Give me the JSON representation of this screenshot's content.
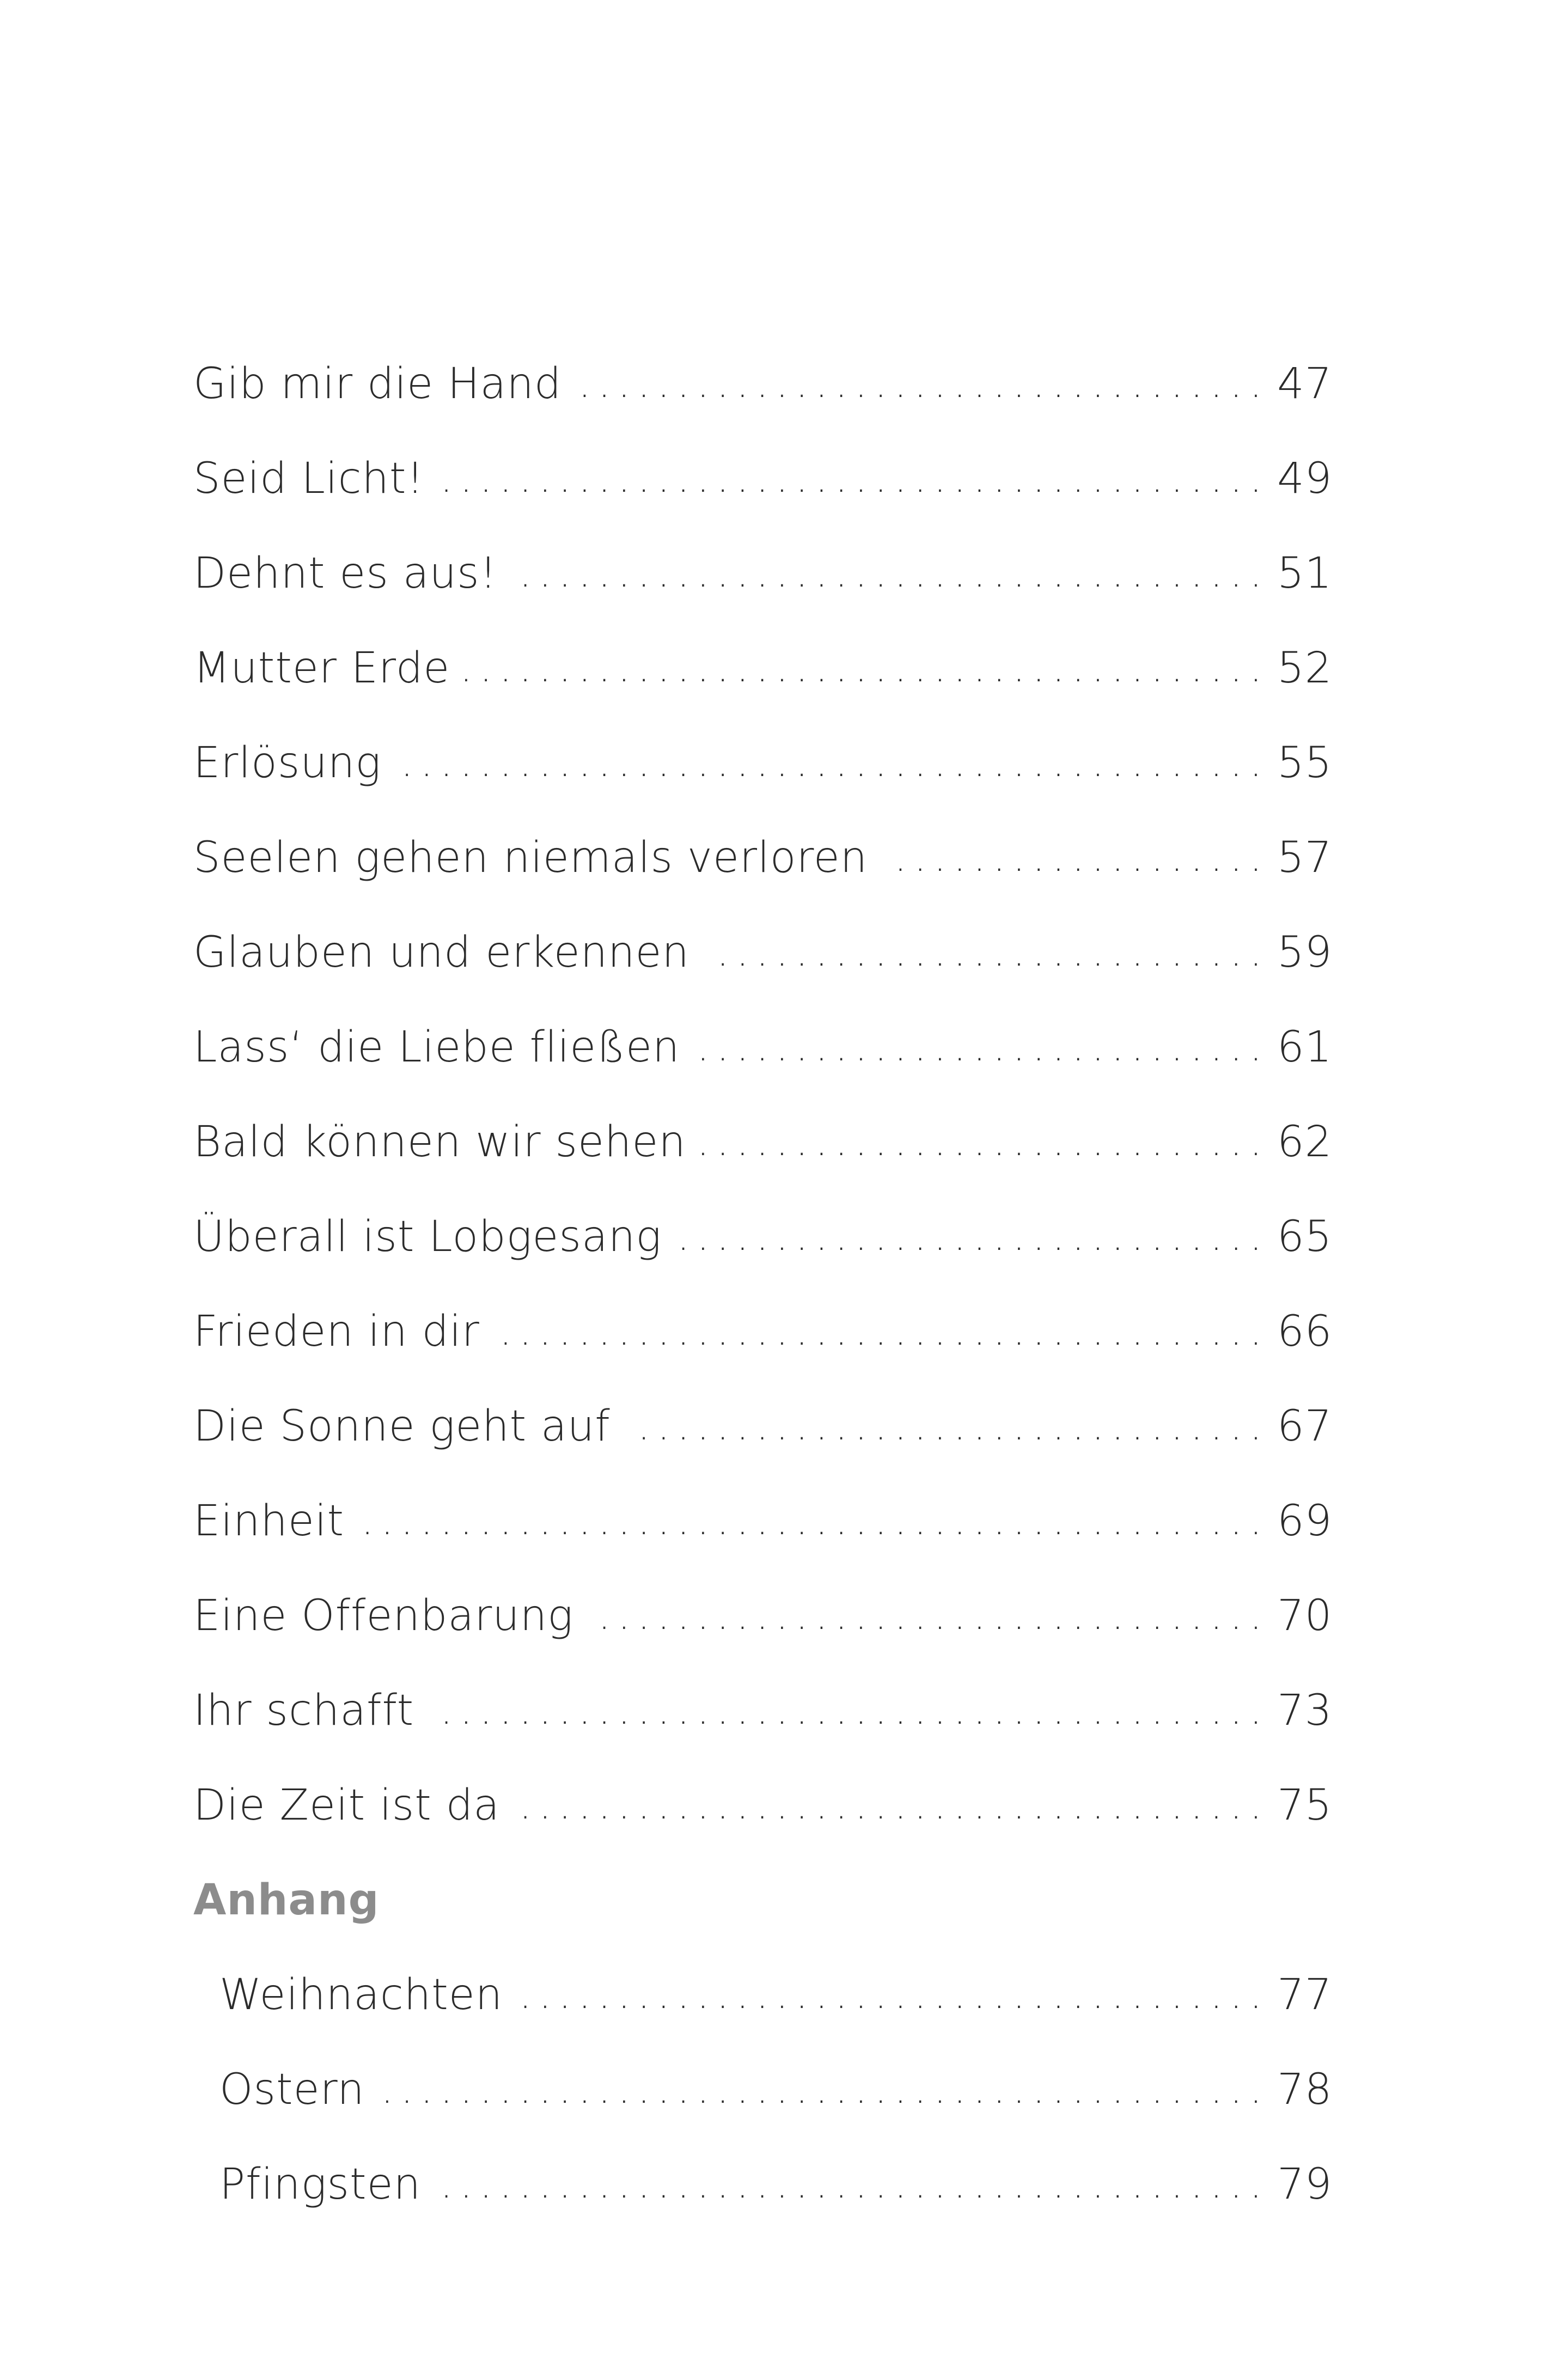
{
  "entries": [
    {
      "title": "Gib mir die Hand",
      "page": "47"
    },
    {
      "title": "Seid Licht!",
      "page": "49"
    },
    {
      "title": "Dehnt es aus!",
      "page": "51"
    },
    {
      "title": "Mutter Erde",
      "page": "52"
    },
    {
      "title": "Erlösung",
      "page": "55"
    },
    {
      "title": "Seelen gehen niemals verloren",
      "page": "57"
    },
    {
      "title": "Glauben und erkennen",
      "page": "59"
    },
    {
      "title": "Lass‘ die Liebe fließen",
      "page": "61"
    },
    {
      "title": "Bald können wir sehen",
      "page": "62"
    },
    {
      "title": "Überall ist Lobgesang",
      "page": "65"
    },
    {
      "title": "Frieden in dir",
      "page": "66"
    },
    {
      "title": "Die Sonne geht auf",
      "page": "67"
    },
    {
      "title": "Einheit",
      "page": "69"
    },
    {
      "title": "Eine Offenbarung",
      "page": "70"
    },
    {
      "title": "Ihr schafft",
      "page": "73"
    },
    {
      "title": "Die Zeit ist da",
      "page": "75"
    }
  ],
  "appendix": {
    "heading": "Anhang",
    "entries": [
      {
        "title": "Weihnachten",
        "page": "77"
      },
      {
        "title": "Ostern",
        "page": "78"
      },
      {
        "title": "Pfingsten",
        "page": "79"
      }
    ]
  }
}
